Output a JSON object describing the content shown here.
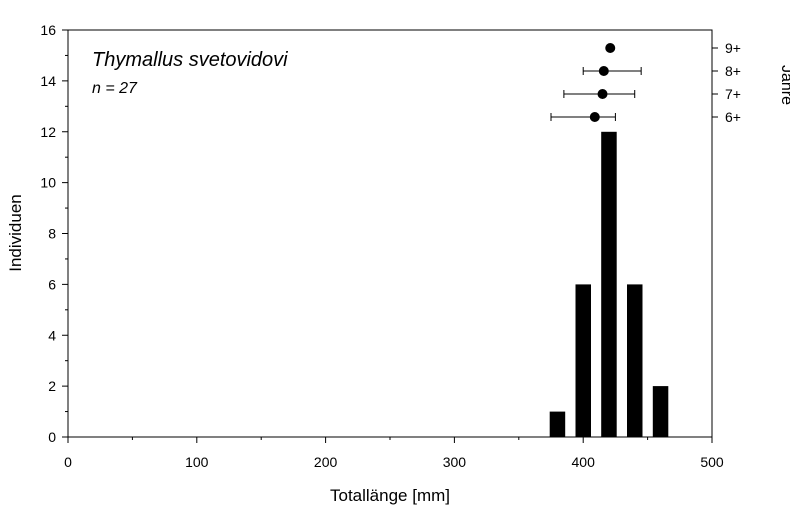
{
  "chart_data": {
    "type": "bar",
    "title": "Thymallus svetovidovi",
    "subtitle": "n = 27",
    "xlabel": "Totallänge [mm]",
    "ylabel": "Individuen",
    "y2label": "Jahre",
    "xlim": [
      0,
      500
    ],
    "ylim": [
      0,
      16
    ],
    "xticks": [
      0,
      100,
      200,
      300,
      400,
      500
    ],
    "yticks": [
      0,
      2,
      4,
      6,
      8,
      10,
      12,
      14,
      16
    ],
    "bar_width": 12,
    "bars": [
      {
        "x": 380,
        "y": 1
      },
      {
        "x": 400,
        "y": 6
      },
      {
        "x": 420,
        "y": 12
      },
      {
        "x": 440,
        "y": 6
      },
      {
        "x": 460,
        "y": 2
      }
    ],
    "age_groups": [
      {
        "label": "9+",
        "mean": 421,
        "lo": 421,
        "hi": 421
      },
      {
        "label": "8+",
        "mean": 416,
        "lo": 400,
        "hi": 445
      },
      {
        "label": "7+",
        "mean": 415,
        "lo": 385,
        "hi": 440
      },
      {
        "label": "6+",
        "mean": 409,
        "lo": 375,
        "hi": 425
      }
    ],
    "grid": false,
    "colors": {
      "bars": "#000000",
      "axis": "#000000"
    }
  }
}
